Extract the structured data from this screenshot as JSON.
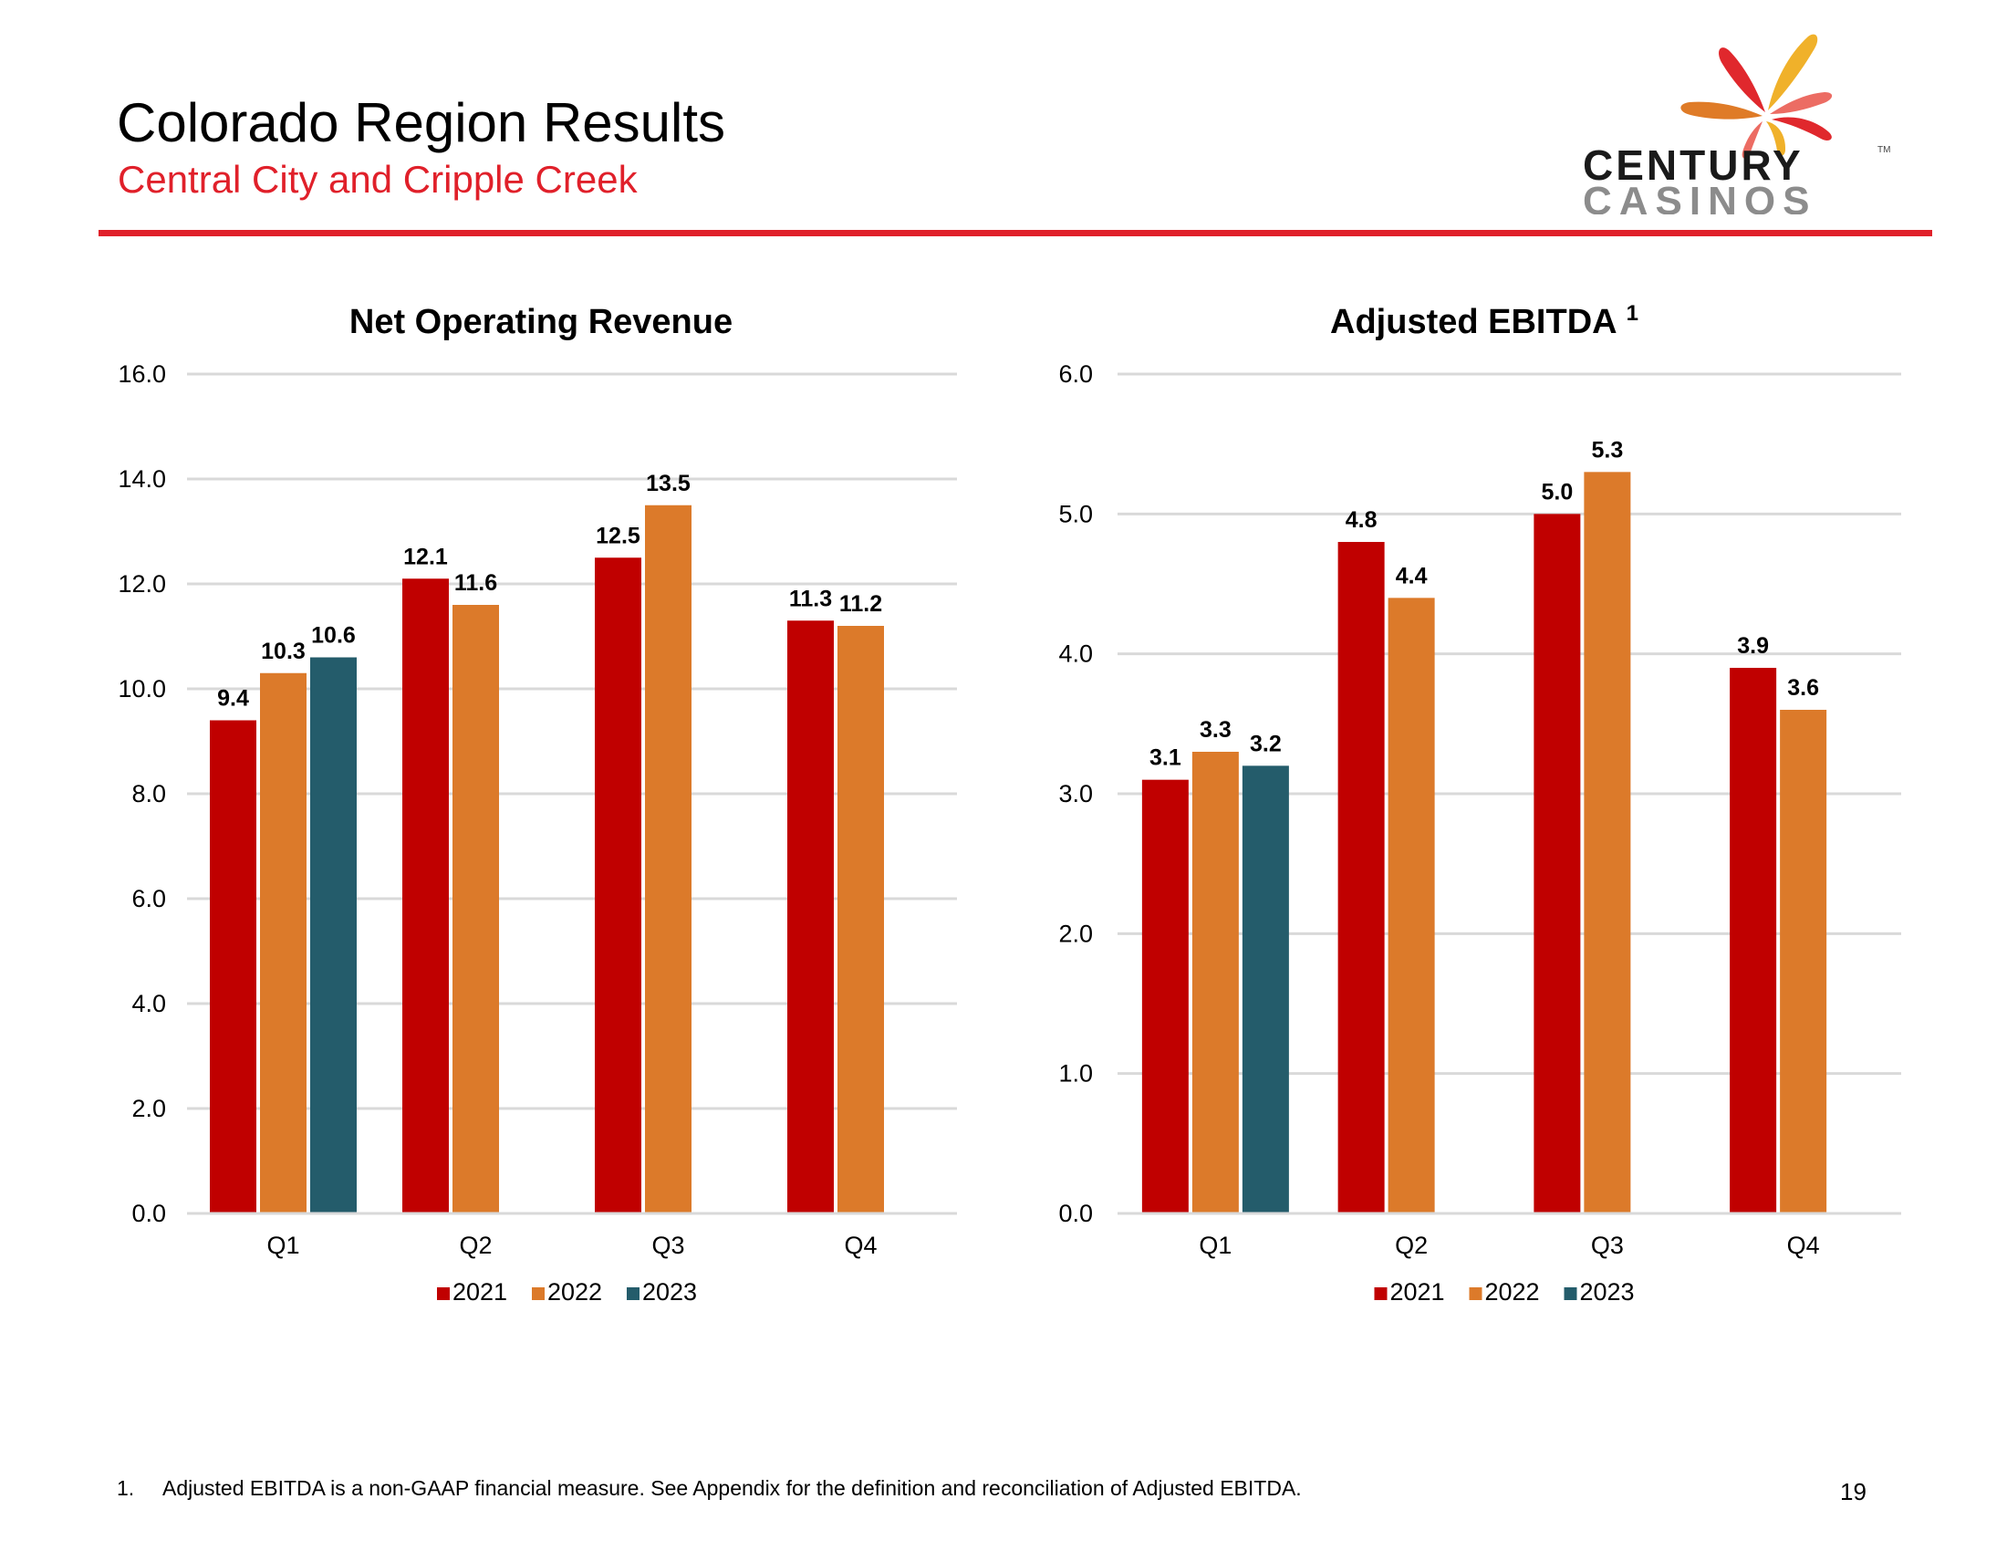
{
  "slide": {
    "title": "Colorado Region Results",
    "subtitle": "Central City and Cripple Creek",
    "accent_color": "#E0202A",
    "page_number": "19",
    "logo": {
      "line1": "CENTURY",
      "line2": "CASINOS",
      "tm": "TM"
    },
    "footnote": {
      "number": "1.",
      "text": "Adjusted EBITDA is a non-GAAP financial measure. See Appendix for the definition and reconciliation of Adjusted EBITDA."
    }
  },
  "series_colors": {
    "2021": "#C00000",
    "2022": "#DC7A2A",
    "2023": "#245C6B"
  },
  "chart_data": [
    {
      "type": "bar",
      "title": "Net Operating Revenue",
      "title_superscript": "",
      "xlabel": "",
      "ylabel": "",
      "categories": [
        "Q1",
        "Q2",
        "Q3",
        "Q4"
      ],
      "ylim": [
        0,
        16
      ],
      "yticks": [
        "0.0",
        "2.0",
        "4.0",
        "6.0",
        "8.0",
        "10.0",
        "12.0",
        "14.0",
        "16.0"
      ],
      "ytick_values": [
        0,
        2,
        4,
        6,
        8,
        10,
        12,
        14,
        16
      ],
      "grid": true,
      "legend_position": "bottom",
      "series": [
        {
          "name": "2021",
          "values": [
            9.4,
            12.1,
            12.5,
            11.3
          ],
          "labels": [
            "9.4",
            "12.1",
            "12.5",
            "11.3"
          ]
        },
        {
          "name": "2022",
          "values": [
            10.3,
            11.6,
            13.5,
            11.2
          ],
          "labels": [
            "10.3",
            "11.6",
            "13.5",
            "11.2"
          ]
        },
        {
          "name": "2023",
          "values": [
            10.6,
            null,
            null,
            null
          ],
          "labels": [
            "10.6",
            "",
            "",
            ""
          ]
        }
      ]
    },
    {
      "type": "bar",
      "title": "Adjusted EBITDA",
      "title_superscript": "1",
      "xlabel": "",
      "ylabel": "",
      "categories": [
        "Q1",
        "Q2",
        "Q3",
        "Q4"
      ],
      "ylim": [
        0,
        6
      ],
      "yticks": [
        "0.0",
        "1.0",
        "2.0",
        "3.0",
        "4.0",
        "5.0",
        "6.0"
      ],
      "ytick_values": [
        0,
        1,
        2,
        3,
        4,
        5,
        6
      ],
      "grid": true,
      "legend_position": "bottom",
      "series": [
        {
          "name": "2021",
          "values": [
            3.1,
            4.8,
            5.0,
            3.9
          ],
          "labels": [
            "3.1",
            "4.8",
            "5.0",
            "3.9"
          ]
        },
        {
          "name": "2022",
          "values": [
            3.3,
            4.4,
            5.3,
            3.6
          ],
          "labels": [
            "3.3",
            "4.4",
            "5.3",
            "3.6"
          ]
        },
        {
          "name": "2023",
          "values": [
            3.2,
            null,
            null,
            null
          ],
          "labels": [
            "3.2",
            "",
            "",
            ""
          ]
        }
      ]
    }
  ]
}
